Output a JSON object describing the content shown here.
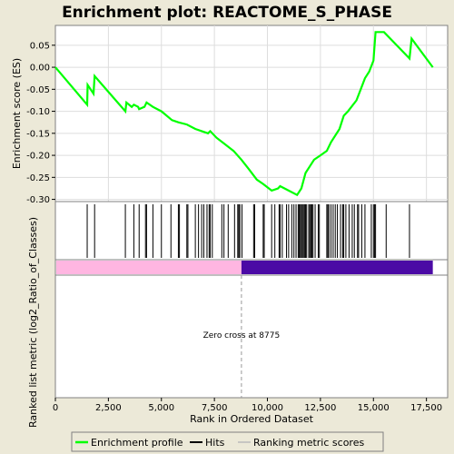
{
  "chart_data": {
    "type": "line",
    "title": "Enrichment plot: REACTOME_S_PHASE",
    "ylabel_top": "Enrichment score (ES)",
    "ylabel_bottom": "Ranked list metric (log2_Ratio_of_Classes)",
    "xlabel": "Rank in Ordered Dataset",
    "xlim": [
      0,
      18500
    ],
    "ylim": [
      -0.305,
      0.095
    ],
    "x_ticks": [
      0,
      2500,
      5000,
      7500,
      10000,
      12500,
      15000,
      17500
    ],
    "x_tick_labels": [
      "0",
      "2,500",
      "5,000",
      "7,500",
      "10,000",
      "12,500",
      "15,000",
      "17,500"
    ],
    "y_ticks": [
      0.05,
      0.0,
      -0.05,
      -0.1,
      -0.15,
      -0.2,
      -0.25,
      -0.3
    ],
    "y_tick_labels": [
      "0.05",
      "0.00",
      "-0.05",
      "-0.10",
      "-0.15",
      "-0.20",
      "-0.25",
      "-0.30"
    ],
    "zero_cross": 8775,
    "zero_cross_label": "Zero cross at 8775",
    "list_size": 17800,
    "colors": {
      "profile": "#00ff00",
      "hits": "#000000",
      "positive_band": "#ffb6e1",
      "negative_band": "#4b0aa5",
      "zero_line": "#999999",
      "grid": "#dddddd"
    },
    "series": [
      {
        "legend_label": "Enrichment profile",
        "x": [
          0,
          1500,
          1520,
          1800,
          1850,
          3300,
          3350,
          3600,
          3700,
          3900,
          3950,
          4200,
          4300,
          4600,
          5000,
          5500,
          5800,
          6200,
          6600,
          6900,
          7200,
          7300,
          7600,
          8000,
          8400,
          8775,
          9100,
          9500,
          9800,
          10200,
          10500,
          10600,
          11000,
          11400,
          11600,
          11800,
          12000,
          12200,
          12500,
          12800,
          13000,
          13400,
          13600,
          13800,
          14200,
          14400,
          14600,
          14800,
          15000,
          15100,
          15500,
          16700,
          16800,
          17800
        ],
        "y": [
          0.0,
          -0.085,
          -0.04,
          -0.06,
          -0.02,
          -0.1,
          -0.08,
          -0.09,
          -0.085,
          -0.09,
          -0.095,
          -0.09,
          -0.08,
          -0.09,
          -0.1,
          -0.12,
          -0.125,
          -0.13,
          -0.14,
          -0.145,
          -0.15,
          -0.145,
          -0.16,
          -0.175,
          -0.19,
          -0.21,
          -0.23,
          -0.255,
          -0.265,
          -0.28,
          -0.275,
          -0.27,
          -0.28,
          -0.29,
          -0.275,
          -0.24,
          -0.225,
          -0.21,
          -0.2,
          -0.19,
          -0.17,
          -0.14,
          -0.11,
          -0.1,
          -0.075,
          -0.05,
          -0.025,
          -0.01,
          0.015,
          0.08,
          0.08,
          0.02,
          0.065,
          0.0
        ]
      }
    ],
    "hits": [
      1500,
      1850,
      3300,
      3700,
      3950,
      4250,
      4300,
      4600,
      5000,
      5450,
      5800,
      5850,
      6200,
      6250,
      6600,
      6750,
      6900,
      7000,
      7150,
      7250,
      7300,
      7400,
      7850,
      7950,
      8150,
      8450,
      8600,
      8650,
      8700,
      8800,
      9350,
      9400,
      9800,
      9850,
      10200,
      10350,
      10550,
      10600,
      10700,
      10900,
      11000,
      11150,
      11250,
      11350,
      11450,
      11500,
      11550,
      11600,
      11650,
      11700,
      11750,
      11800,
      11850,
      11950,
      12000,
      12050,
      12100,
      12150,
      12250,
      12400,
      12450,
      12800,
      12850,
      12900,
      13000,
      13100,
      13200,
      13300,
      13450,
      13550,
      13600,
      13700,
      13850,
      14000,
      14100,
      14250,
      14300,
      14450,
      14600,
      14900,
      15000,
      15050,
      15100,
      15600,
      16700
    ],
    "legend": {
      "enrichment_profile": "Enrichment profile",
      "hits": "Hits",
      "ranking_metric": "Ranking metric scores"
    }
  }
}
